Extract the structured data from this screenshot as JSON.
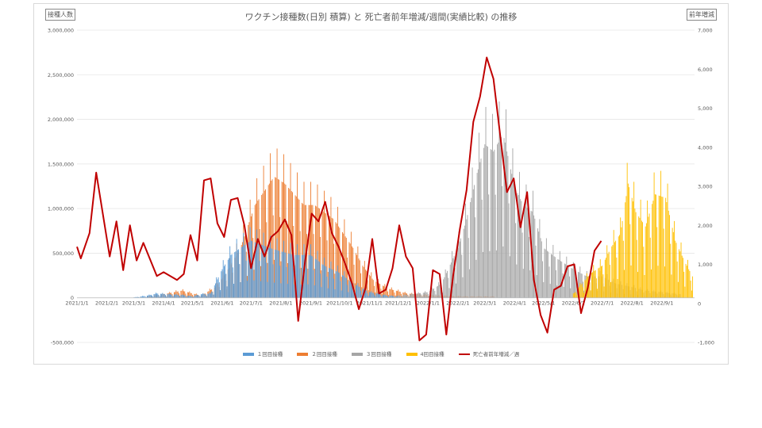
{
  "chart_data": {
    "type": "bar",
    "title": "ワクチン接種数(日別 積算) と 死亡者前年増減/週間(実績比較) の推移",
    "ylabel": "接種人数",
    "y2label": "前年増減",
    "ylim": [
      -500000,
      3000000
    ],
    "y2lim": [
      -1000,
      7000
    ],
    "grid": true,
    "legend_position": "bottom",
    "y_ticks": [
      "3,000,000",
      "2,500,000",
      "2,000,000",
      "1,500,000",
      "1,000,000",
      "500,000",
      "0",
      "-500,000"
    ],
    "y2_ticks": [
      "7,000",
      "6,000",
      "5,000",
      "4,000",
      "3,000",
      "2,000",
      "1,000",
      "0",
      "-1,000"
    ],
    "x_ticks": [
      "2021/1/1",
      "2021/2/1",
      "2021/3/1",
      "2021/4/1",
      "2021/5/1",
      "2021/6/1",
      "2021/7/1",
      "2021/8/1",
      "2021/9/1",
      "2021/10/1",
      "2021/11/1",
      "2021/12/1",
      "2022/1/1",
      "2022/2/1",
      "2022/3/1",
      "2022/4/1",
      "2022/5/1",
      "2022/6/1",
      "2022/7/1",
      "2022/8/1",
      "2022/9/1"
    ],
    "x_start": "2021-01-01",
    "x_end": "2022-10-05",
    "series": [
      {
        "name": "１回目接種",
        "color": "#5b9bd5",
        "kind": "bar",
        "points": [
          [
            "2021-03-01",
            5000
          ],
          [
            "2021-03-15",
            30000
          ],
          [
            "2021-03-25",
            60000
          ],
          [
            "2021-04-05",
            50000
          ],
          [
            "2021-04-20",
            40000
          ],
          [
            "2021-05-01",
            20000
          ],
          [
            "2021-05-10",
            50000
          ],
          [
            "2021-05-20",
            60000
          ],
          [
            "2021-06-01",
            400000
          ],
          [
            "2021-06-10",
            600000
          ],
          [
            "2021-06-20",
            700000
          ],
          [
            "2021-07-01",
            800000
          ],
          [
            "2021-07-10",
            750000
          ],
          [
            "2021-07-20",
            700000
          ],
          [
            "2021-08-01",
            650000
          ],
          [
            "2021-08-15",
            600000
          ],
          [
            "2021-09-01",
            600000
          ],
          [
            "2021-09-15",
            450000
          ],
          [
            "2021-10-01",
            350000
          ],
          [
            "2021-10-15",
            200000
          ],
          [
            "2021-11-01",
            80000
          ],
          [
            "2021-11-20",
            30000
          ],
          [
            "2021-12-15",
            10000
          ],
          [
            "2022-02-01",
            5000
          ],
          [
            "2022-04-01",
            5000
          ],
          [
            "2022-07-01",
            3000
          ]
        ]
      },
      {
        "name": "２回目接種",
        "color": "#ed7d31",
        "kind": "bar",
        "points": [
          [
            "2021-03-15",
            20000
          ],
          [
            "2021-04-05",
            60000
          ],
          [
            "2021-04-20",
            100000
          ],
          [
            "2021-05-10",
            30000
          ],
          [
            "2021-05-25",
            150000
          ],
          [
            "2021-06-05",
            350000
          ],
          [
            "2021-06-20",
            700000
          ],
          [
            "2021-07-05",
            1300000
          ],
          [
            "2021-07-15",
            1500000
          ],
          [
            "2021-07-25",
            1700000
          ],
          [
            "2021-08-05",
            1600000
          ],
          [
            "2021-08-15",
            1450000
          ],
          [
            "2021-08-25",
            1300000
          ],
          [
            "2021-09-05",
            1300000
          ],
          [
            "2021-09-15",
            1200000
          ],
          [
            "2021-09-25",
            1100000
          ],
          [
            "2021-10-05",
            900000
          ],
          [
            "2021-10-15",
            700000
          ],
          [
            "2021-10-25",
            450000
          ],
          [
            "2021-11-05",
            250000
          ],
          [
            "2021-11-20",
            130000
          ],
          [
            "2021-12-10",
            60000
          ],
          [
            "2022-01-10",
            30000
          ],
          [
            "2022-02-10",
            20000
          ],
          [
            "2022-03-10",
            20000
          ]
        ]
      },
      {
        "name": "３回目接種",
        "color": "#a5a5a5",
        "kind": "bar",
        "points": [
          [
            "2021-12-01",
            30000
          ],
          [
            "2021-12-15",
            50000
          ],
          [
            "2022-01-01",
            80000
          ],
          [
            "2022-01-15",
            200000
          ],
          [
            "2022-02-01",
            700000
          ],
          [
            "2022-02-10",
            1100000
          ],
          [
            "2022-02-20",
            1700000
          ],
          [
            "2022-03-01",
            2150000
          ],
          [
            "2022-03-10",
            2050000
          ],
          [
            "2022-03-20",
            2300000
          ],
          [
            "2022-04-01",
            1550000
          ],
          [
            "2022-04-10",
            1300000
          ],
          [
            "2022-04-20",
            1200000
          ],
          [
            "2022-05-01",
            700000
          ],
          [
            "2022-05-15",
            550000
          ],
          [
            "2022-06-01",
            400000
          ],
          [
            "2022-06-15",
            300000
          ],
          [
            "2022-07-01",
            300000
          ],
          [
            "2022-07-15",
            200000
          ],
          [
            "2022-08-01",
            150000
          ],
          [
            "2022-08-15",
            100000
          ],
          [
            "2022-09-01",
            80000
          ],
          [
            "2022-09-20",
            50000
          ]
        ]
      },
      {
        "name": "4回目接種",
        "color": "#ffc000",
        "kind": "bar",
        "points": [
          [
            "2022-06-01",
            50000
          ],
          [
            "2022-06-10",
            200000
          ],
          [
            "2022-06-20",
            350000
          ],
          [
            "2022-07-01",
            450000
          ],
          [
            "2022-07-10",
            700000
          ],
          [
            "2022-07-20",
            900000
          ],
          [
            "2022-07-28",
            1600000
          ],
          [
            "2022-08-05",
            1200000
          ],
          [
            "2022-08-15",
            1000000
          ],
          [
            "2022-08-25",
            1450000
          ],
          [
            "2022-09-05",
            1400000
          ],
          [
            "2022-09-15",
            800000
          ],
          [
            "2022-09-25",
            500000
          ],
          [
            "2022-10-03",
            300000
          ]
        ]
      },
      {
        "name": "死亡者前年増減／週",
        "color": "#c00000",
        "kind": "line",
        "axis": "right",
        "points": [
          [
            "2021-01-01",
            1450
          ],
          [
            "2021-01-05",
            1150
          ],
          [
            "2021-01-14",
            1800
          ],
          [
            "2021-01-21",
            3350
          ],
          [
            "2021-02-04",
            1200
          ],
          [
            "2021-02-11",
            2100
          ],
          [
            "2021-02-18",
            850
          ],
          [
            "2021-02-25",
            2000
          ],
          [
            "2021-03-04",
            1100
          ],
          [
            "2021-03-11",
            1550
          ],
          [
            "2021-03-25",
            700
          ],
          [
            "2021-04-01",
            800
          ],
          [
            "2021-04-15",
            600
          ],
          [
            "2021-04-22",
            750
          ],
          [
            "2021-04-29",
            1750
          ],
          [
            "2021-05-06",
            1100
          ],
          [
            "2021-05-13",
            3150
          ],
          [
            "2021-05-20",
            3200
          ],
          [
            "2021-05-27",
            2050
          ],
          [
            "2021-06-03",
            1700
          ],
          [
            "2021-06-10",
            2650
          ],
          [
            "2021-06-17",
            2700
          ],
          [
            "2021-06-24",
            2000
          ],
          [
            "2021-07-01",
            900
          ],
          [
            "2021-07-08",
            1650
          ],
          [
            "2021-07-15",
            1200
          ],
          [
            "2021-07-22",
            1700
          ],
          [
            "2021-07-29",
            1850
          ],
          [
            "2021-08-05",
            2150
          ],
          [
            "2021-08-12",
            1750
          ],
          [
            "2021-08-19",
            -450
          ],
          [
            "2021-08-26",
            1050
          ],
          [
            "2021-09-02",
            2300
          ],
          [
            "2021-09-09",
            2100
          ],
          [
            "2021-09-16",
            2600
          ],
          [
            "2021-09-23",
            1800
          ],
          [
            "2021-09-30",
            1450
          ],
          [
            "2021-10-07",
            1000
          ],
          [
            "2021-10-14",
            500
          ],
          [
            "2021-10-21",
            -150
          ],
          [
            "2021-10-28",
            400
          ],
          [
            "2021-11-04",
            1650
          ],
          [
            "2021-11-11",
            250
          ],
          [
            "2021-11-18",
            350
          ],
          [
            "2021-11-25",
            900
          ],
          [
            "2021-12-02",
            2000
          ],
          [
            "2021-12-09",
            1200
          ],
          [
            "2021-12-16",
            900
          ],
          [
            "2021-12-23",
            -950
          ],
          [
            "2021-12-30",
            -800
          ],
          [
            "2022-01-06",
            850
          ],
          [
            "2022-01-13",
            750
          ],
          [
            "2022-01-20",
            -800
          ],
          [
            "2022-01-27",
            700
          ],
          [
            "2022-02-03",
            1900
          ],
          [
            "2022-02-10",
            2900
          ],
          [
            "2022-02-17",
            4650
          ],
          [
            "2022-02-24",
            5300
          ],
          [
            "2022-03-03",
            6300
          ],
          [
            "2022-03-10",
            5750
          ],
          [
            "2022-03-17",
            4300
          ],
          [
            "2022-03-24",
            2850
          ],
          [
            "2022-03-31",
            3200
          ],
          [
            "2022-04-07",
            1950
          ],
          [
            "2022-04-14",
            2850
          ],
          [
            "2022-04-21",
            600
          ],
          [
            "2022-04-28",
            -300
          ],
          [
            "2022-05-05",
            -750
          ],
          [
            "2022-05-12",
            350
          ],
          [
            "2022-05-19",
            450
          ],
          [
            "2022-05-26",
            950
          ],
          [
            "2022-06-02",
            1000
          ],
          [
            "2022-06-09",
            -250
          ],
          [
            "2022-06-16",
            400
          ],
          [
            "2022-06-23",
            1350
          ],
          [
            "2022-06-30",
            1600
          ]
        ]
      }
    ]
  },
  "legend_entries": [
    "１回目接種",
    "２回目接種",
    "３回目接種",
    "4回目接種",
    "死亡者前年増減／週"
  ]
}
